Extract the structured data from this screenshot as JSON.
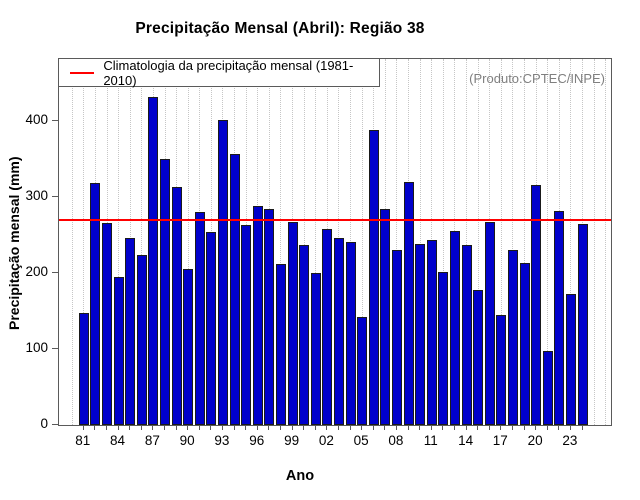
{
  "annotation": "(Produto:CPTEC/INPE)",
  "legend": {
    "label": "Climatologia da precipitação mensal (1981-2010)"
  },
  "colors": {
    "bar_fill": "#0000cb",
    "bar_border": "#1a1a1a",
    "climatology_line": "#ff0000",
    "annotation_text": "#7f7f7f",
    "axis": "#5a5a5a",
    "grid": "#c6c6c6"
  },
  "chart_data": {
    "type": "bar",
    "title": "Precipitação Mensal (Abril): Região 38",
    "xlabel": "Ano",
    "ylabel": "Precipitação mensal (mm)",
    "ylim": [
      0,
      482
    ],
    "yticks": [
      0,
      100,
      200,
      300,
      400
    ],
    "grid": "vertical-dotted",
    "legend_position": "top-left",
    "categories": [
      "1981",
      "1982",
      "1983",
      "1984",
      "1985",
      "1986",
      "1987",
      "1988",
      "1989",
      "1990",
      "1991",
      "1992",
      "1993",
      "1994",
      "1995",
      "1996",
      "1997",
      "1998",
      "1999",
      "2000",
      "2001",
      "2002",
      "2003",
      "2004",
      "2005",
      "2006",
      "2007",
      "2008",
      "2009",
      "2010",
      "2011",
      "2012",
      "2013",
      "2014",
      "2015",
      "2016",
      "2017",
      "2018",
      "2019",
      "2020",
      "2021",
      "2022",
      "2023",
      "2024"
    ],
    "values": [
      148,
      319,
      266,
      195,
      246,
      224,
      432,
      350,
      314,
      206,
      280,
      254,
      402,
      357,
      263,
      289,
      284,
      212,
      268,
      237,
      200,
      258,
      246,
      241,
      142,
      389,
      285,
      230,
      320,
      238,
      244,
      201,
      255,
      237,
      178,
      268,
      145,
      231,
      214,
      316,
      97,
      282,
      173,
      265
    ],
    "xtick_label_every": 3,
    "xtick_labels_shown": [
      "81",
      "84",
      "87",
      "90",
      "93",
      "96",
      "99",
      "02",
      "05",
      "08",
      "11",
      "14",
      "17",
      "20",
      "23"
    ],
    "climatology": {
      "value": 270,
      "period": "1981-2010"
    }
  }
}
